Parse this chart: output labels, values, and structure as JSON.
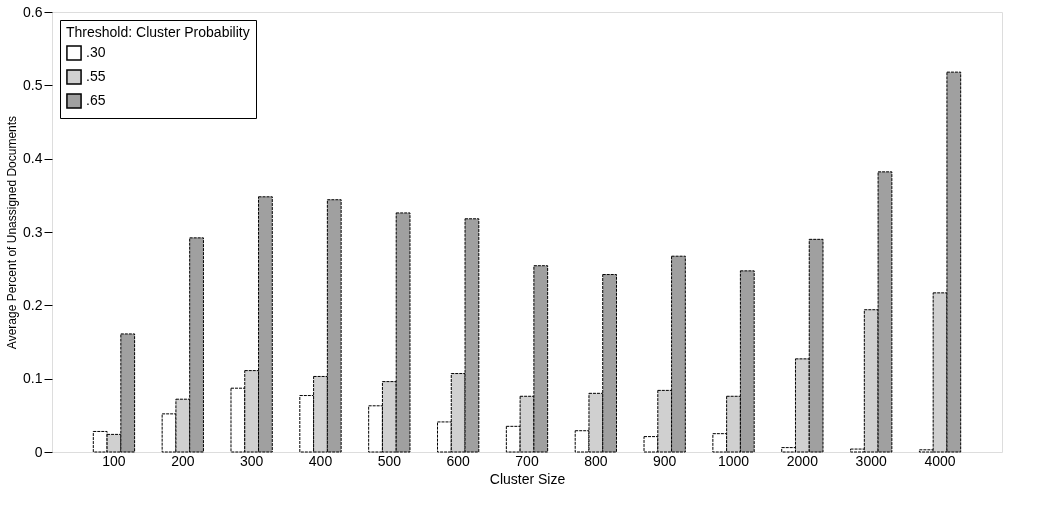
{
  "chart_data": {
    "type": "bar",
    "xlabel": "Cluster Size",
    "ylabel": "Average Percent of Unassigned Documents",
    "legend_title": "Threshold: Cluster Probability",
    "legend": "top left",
    "grid": false,
    "categories": [
      "100",
      "200",
      "300",
      "400",
      "500",
      "600",
      "700",
      "800",
      "900",
      "1000",
      "2000",
      "3000",
      "4000"
    ],
    "ylim": [
      0,
      0.6
    ],
    "yticks": [
      0,
      0.1,
      0.2,
      0.3,
      0.4,
      0.5,
      0.6
    ],
    "series": [
      {
        "name": ".30",
        "color": "#ffffff",
        "values": [
          0.028,
          0.052,
          0.087,
          0.077,
          0.063,
          0.041,
          0.035,
          0.029,
          0.021,
          0.025,
          0.006,
          0.004,
          0.003
        ]
      },
      {
        "name": ".55",
        "color": "#d0d0d0",
        "values": [
          0.024,
          0.072,
          0.111,
          0.103,
          0.096,
          0.107,
          0.076,
          0.08,
          0.084,
          0.076,
          0.127,
          0.194,
          0.217
        ]
      },
      {
        "name": ".65",
        "color": "#a0a0a0",
        "values": [
          0.161,
          0.292,
          0.348,
          0.344,
          0.326,
          0.318,
          0.254,
          0.242,
          0.267,
          0.247,
          0.29,
          0.382,
          0.518
        ]
      }
    ]
  }
}
